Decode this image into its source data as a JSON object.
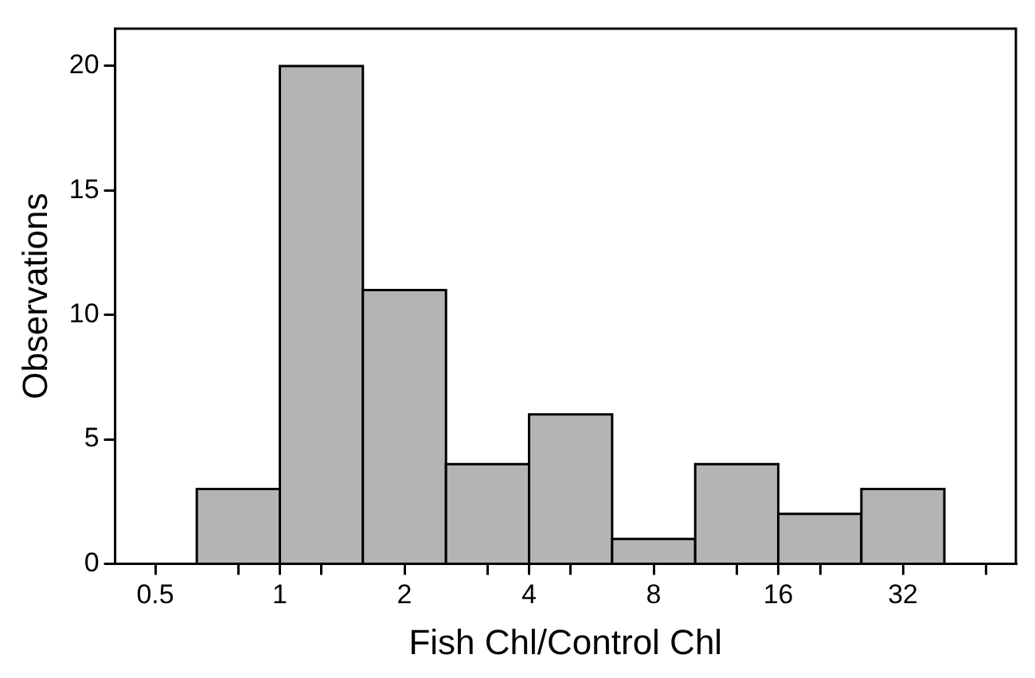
{
  "chart_data": {
    "type": "histogram",
    "xlabel": "Fish Chl/Control Chl",
    "ylabel": "Observations",
    "bins": [
      0.63,
      1,
      1.587,
      2.52,
      4,
      6.35,
      10.08,
      16,
      25.4,
      40.3
    ],
    "values": [
      3,
      20,
      11,
      4,
      6,
      1,
      4,
      2,
      3
    ],
    "color": "#b4b4b4",
    "log": "x",
    "xlim": [
      0.4,
      60
    ],
    "xticks": [
      0.5,
      {
        "value": 0.794,
        "label": null
      },
      1,
      {
        "value": 1.26,
        "label": null
      },
      2,
      {
        "value": 3.17,
        "label": null
      },
      4,
      {
        "value": 5.04,
        "label": null
      },
      8,
      {
        "value": 12.7,
        "label": null
      },
      16,
      {
        "value": 20.2,
        "label": null
      },
      32,
      {
        "value": 50.8,
        "label": null
      }
    ],
    "ylim": [
      0,
      21.5
    ],
    "yticks": [
      0,
      5,
      10,
      15,
      20
    ],
    "grid": false,
    "legend": false
  }
}
